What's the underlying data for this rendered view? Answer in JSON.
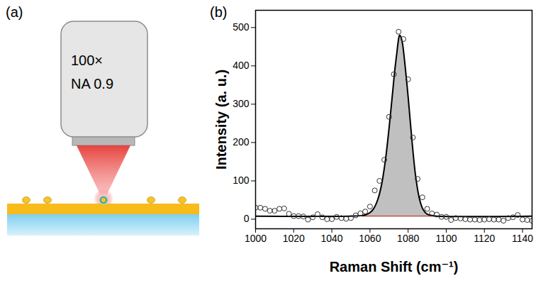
{
  "diagram": {
    "panel_label": "(a)",
    "objective": {
      "lines": [
        "100×",
        "NA 0.9"
      ]
    }
  },
  "chart_data": {
    "panel_label": "(b)",
    "type": "scatter",
    "x_label": "Raman Shift (cm⁻¹)",
    "y_label": "Intensity (a. u.)",
    "xlim": [
      1000,
      1145
    ],
    "ylim": [
      -25,
      545
    ],
    "xticks": [
      1000,
      1020,
      1040,
      1060,
      1080,
      1100,
      1120,
      1140
    ],
    "yticks": [
      0,
      100,
      200,
      300,
      400,
      500
    ],
    "grid": false,
    "series": [
      {
        "type": "area",
        "color": "#c0c0c0",
        "baseline": 8,
        "x": [
          1056,
          1058,
          1060,
          1062,
          1064,
          1066,
          1068,
          1070,
          1072,
          1073,
          1074,
          1075,
          1075.5,
          1076,
          1077,
          1078,
          1080,
          1082,
          1084,
          1086,
          1088,
          1090,
          1092,
          1094
        ],
        "values": [
          10,
          12,
          17,
          28,
          50,
          88,
          150,
          237,
          337,
          388,
          430,
          470,
          480,
          478,
          460,
          420,
          320,
          206,
          110,
          52,
          24,
          13,
          10,
          9
        ]
      },
      {
        "type": "line",
        "color": "#000000",
        "line_style": "solid",
        "x": [
          1000,
          1050,
          1055,
          1058,
          1060,
          1062,
          1064,
          1066,
          1068,
          1070,
          1072,
          1073,
          1074,
          1075,
          1075.5,
          1076,
          1077,
          1078,
          1080,
          1082,
          1084,
          1086,
          1088,
          1090,
          1092,
          1095,
          1145
        ],
        "values": [
          8,
          8,
          9,
          12,
          17,
          28,
          50,
          88,
          150,
          237,
          337,
          388,
          430,
          470,
          480,
          478,
          460,
          420,
          320,
          206,
          110,
          52,
          24,
          13,
          10,
          8,
          8
        ]
      },
      {
        "type": "scatter",
        "color": "#333333",
        "marker": "open_circle",
        "x": [
          1000,
          1002.5,
          1005,
          1007.5,
          1010,
          1012.5,
          1015,
          1017.5,
          1020,
          1022.5,
          1025,
          1027.5,
          1030,
          1032.5,
          1035,
          1037.5,
          1040,
          1042.5,
          1045,
          1047.5,
          1050,
          1052.5,
          1055,
          1057.5,
          1060,
          1062.5,
          1065,
          1067.5,
          1070,
          1072.5,
          1075,
          1077.5,
          1080,
          1082.5,
          1085,
          1087.5,
          1090,
          1092.5,
          1095,
          1097.5,
          1100,
          1102.5,
          1105,
          1107.5,
          1110,
          1112.5,
          1115,
          1117.5,
          1120,
          1122.5,
          1125,
          1127.5,
          1130,
          1132.5,
          1135,
          1137.5,
          1140,
          1142.5,
          1145
        ],
        "values": [
          30,
          30,
          27,
          22,
          22,
          27,
          28,
          14,
          8,
          8,
          7,
          -1,
          5,
          13,
          5,
          0,
          0,
          6,
          3,
          1,
          3,
          10,
          15,
          20,
          33,
          75,
          100,
          155,
          267,
          378,
          489,
          470,
          365,
          213,
          105,
          57,
          27,
          15,
          12,
          6,
          6,
          -2,
          3,
          2,
          0,
          -1,
          -1,
          -2,
          -1,
          0,
          -1,
          -1,
          -4,
          3,
          5,
          11,
          -1,
          -2,
          -4
        ]
      }
    ]
  }
}
